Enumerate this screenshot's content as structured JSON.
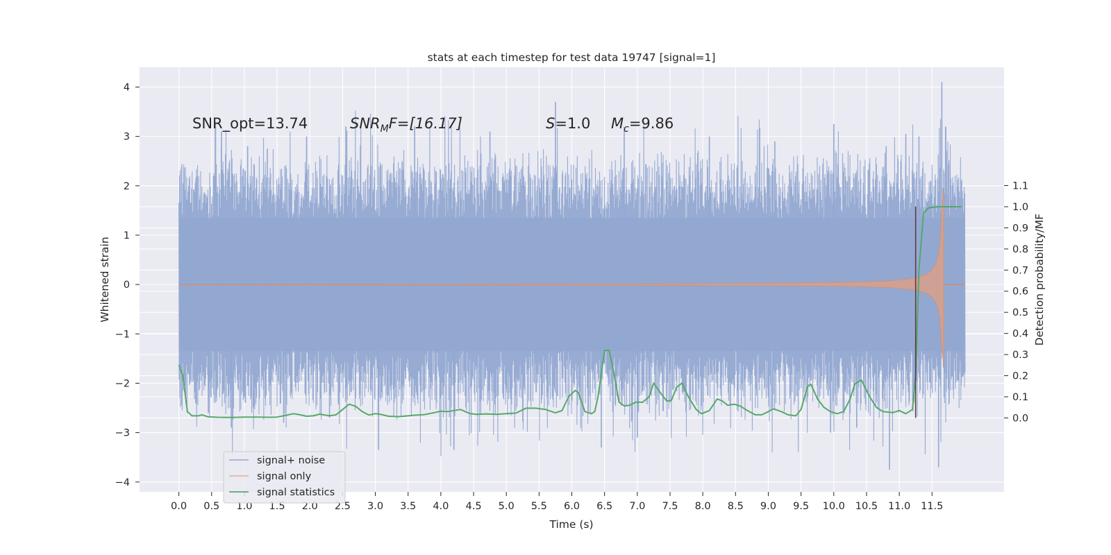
{
  "chart_data": {
    "type": "line",
    "title": "stats at each timestep for test data 19747 [signal=1]",
    "xlabel": "Time (s)",
    "ylabel": "Whitened strain",
    "ylabel_right": "Detection probability/MF",
    "xlim": [
      -0.6,
      12.6
    ],
    "ylim": [
      -4.2,
      4.4
    ],
    "ylim_right": [
      -0.35,
      1.66
    ],
    "x_ticks": [
      "0.0",
      "0.5",
      "1.0",
      "1.5",
      "2.0",
      "2.5",
      "3.0",
      "3.5",
      "4.0",
      "4.5",
      "5.0",
      "5.5",
      "6.0",
      "6.5",
      "7.0",
      "7.5",
      "8.0",
      "8.5",
      "9.0",
      "9.5",
      "10.0",
      "10.5",
      "11.0",
      "11.5"
    ],
    "y_ticks": [
      "4",
      "3",
      "2",
      "1",
      "0",
      "−1",
      "−2",
      "−3",
      "−4"
    ],
    "y_ticks_right": [
      "1.1",
      "1.0",
      "0.9",
      "0.8",
      "0.7",
      "0.6",
      "0.5",
      "0.4",
      "0.3",
      "0.2",
      "0.1",
      "0.0"
    ],
    "annotations": {
      "snr_opt": "SNR_opt=13.74",
      "snr_mf_main": "SNR",
      "snr_mf_sub": "M",
      "snr_mf_rest": "F=[16.17]",
      "s_sym": "S",
      "s_val": "=1.0",
      "mc_sym": "M",
      "mc_sub": "c",
      "mc_val": "=9.86"
    },
    "marker_time": 11.25,
    "noise_envelope": {
      "time_range": [
        0.0,
        12.0
      ],
      "typical_abs": 1.4,
      "peak_max": 4.1,
      "peak_min": -3.8
    },
    "series": [
      {
        "name": "signal+ noise",
        "color": "#92a8d1"
      },
      {
        "name": "signal only",
        "color": "#dd8452"
      },
      {
        "name": "signal statistics",
        "color": "#55a868",
        "points": [
          [
            0.0,
            0.25
          ],
          [
            0.06,
            0.2
          ],
          [
            0.13,
            0.03
          ],
          [
            0.2,
            0.01
          ],
          [
            0.3,
            0.01
          ],
          [
            0.35,
            0.015
          ],
          [
            0.45,
            0.005
          ],
          [
            0.6,
            0.003
          ],
          [
            0.8,
            0.002
          ],
          [
            1.0,
            0.004
          ],
          [
            1.2,
            0.004
          ],
          [
            1.4,
            0.003
          ],
          [
            1.5,
            0.004
          ],
          [
            1.6,
            0.01
          ],
          [
            1.75,
            0.02
          ],
          [
            1.85,
            0.015
          ],
          [
            1.95,
            0.008
          ],
          [
            2.05,
            0.01
          ],
          [
            2.15,
            0.018
          ],
          [
            2.3,
            0.01
          ],
          [
            2.4,
            0.015
          ],
          [
            2.5,
            0.04
          ],
          [
            2.6,
            0.065
          ],
          [
            2.7,
            0.055
          ],
          [
            2.8,
            0.03
          ],
          [
            2.9,
            0.014
          ],
          [
            3.0,
            0.02
          ],
          [
            3.1,
            0.016
          ],
          [
            3.2,
            0.008
          ],
          [
            3.35,
            0.006
          ],
          [
            3.5,
            0.01
          ],
          [
            3.6,
            0.013
          ],
          [
            3.75,
            0.016
          ],
          [
            3.9,
            0.025
          ],
          [
            4.0,
            0.032
          ],
          [
            4.1,
            0.03
          ],
          [
            4.2,
            0.035
          ],
          [
            4.3,
            0.04
          ],
          [
            4.45,
            0.02
          ],
          [
            4.55,
            0.017
          ],
          [
            4.7,
            0.019
          ],
          [
            4.85,
            0.017
          ],
          [
            5.0,
            0.02
          ],
          [
            5.15,
            0.023
          ],
          [
            5.3,
            0.046
          ],
          [
            5.45,
            0.046
          ],
          [
            5.6,
            0.04
          ],
          [
            5.75,
            0.024
          ],
          [
            5.85,
            0.035
          ],
          [
            5.95,
            0.1
          ],
          [
            6.05,
            0.13
          ],
          [
            6.1,
            0.12
          ],
          [
            6.2,
            0.03
          ],
          [
            6.3,
            0.02
          ],
          [
            6.35,
            0.03
          ],
          [
            6.4,
            0.1
          ],
          [
            6.5,
            0.32
          ],
          [
            6.57,
            0.32
          ],
          [
            6.65,
            0.2
          ],
          [
            6.72,
            0.075
          ],
          [
            6.8,
            0.057
          ],
          [
            6.88,
            0.06
          ],
          [
            6.98,
            0.075
          ],
          [
            7.08,
            0.074
          ],
          [
            7.18,
            0.1
          ],
          [
            7.25,
            0.165
          ],
          [
            7.35,
            0.12
          ],
          [
            7.45,
            0.08
          ],
          [
            7.52,
            0.083
          ],
          [
            7.6,
            0.145
          ],
          [
            7.68,
            0.165
          ],
          [
            7.78,
            0.1
          ],
          [
            7.9,
            0.04
          ],
          [
            7.98,
            0.02
          ],
          [
            8.1,
            0.035
          ],
          [
            8.22,
            0.09
          ],
          [
            8.3,
            0.08
          ],
          [
            8.38,
            0.06
          ],
          [
            8.48,
            0.065
          ],
          [
            8.58,
            0.055
          ],
          [
            8.68,
            0.035
          ],
          [
            8.8,
            0.015
          ],
          [
            8.9,
            0.015
          ],
          [
            9.0,
            0.03
          ],
          [
            9.08,
            0.043
          ],
          [
            9.2,
            0.03
          ],
          [
            9.3,
            0.015
          ],
          [
            9.42,
            0.01
          ],
          [
            9.5,
            0.04
          ],
          [
            9.6,
            0.15
          ],
          [
            9.65,
            0.16
          ],
          [
            9.75,
            0.09
          ],
          [
            9.85,
            0.05
          ],
          [
            9.95,
            0.03
          ],
          [
            10.05,
            0.02
          ],
          [
            10.15,
            0.03
          ],
          [
            10.25,
            0.09
          ],
          [
            10.32,
            0.16
          ],
          [
            10.42,
            0.18
          ],
          [
            10.55,
            0.1
          ],
          [
            10.65,
            0.05
          ],
          [
            10.75,
            0.03
          ],
          [
            10.9,
            0.025
          ],
          [
            11.0,
            0.035
          ],
          [
            11.1,
            0.02
          ],
          [
            11.2,
            0.04
          ],
          [
            11.25,
            0.2
          ],
          [
            11.3,
            0.7
          ],
          [
            11.37,
            0.97
          ],
          [
            11.45,
            0.995
          ],
          [
            11.6,
            1.0
          ],
          [
            11.7,
            1.0
          ],
          [
            11.95,
            1.0
          ]
        ]
      }
    ],
    "legend_position": "lower-left"
  }
}
